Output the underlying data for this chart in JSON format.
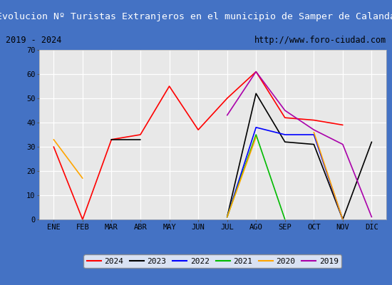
{
  "title": "Evolucion Nº Turistas Extranjeros en el municipio de Samper de Calanda",
  "subtitle_left": "2019 - 2024",
  "subtitle_right": "http://www.foro-ciudad.com",
  "months": [
    "ENE",
    "FEB",
    "MAR",
    "ABR",
    "MAY",
    "JUN",
    "JUL",
    "AGO",
    "SEP",
    "OCT",
    "NOV",
    "DIC"
  ],
  "series": {
    "2024": {
      "color": "#ff0000",
      "data": [
        30,
        0,
        33,
        35,
        55,
        37,
        50,
        61,
        42,
        41,
        39,
        null
      ]
    },
    "2023": {
      "color": "#000000",
      "data": [
        null,
        null,
        33,
        33,
        null,
        null,
        1,
        52,
        32,
        31,
        0,
        32
      ]
    },
    "2022": {
      "color": "#0000ff",
      "data": [
        null,
        null,
        null,
        null,
        null,
        null,
        1,
        38,
        35,
        35,
        0,
        null
      ]
    },
    "2021": {
      "color": "#00bb00",
      "data": [
        null,
        null,
        null,
        null,
        null,
        null,
        1,
        35,
        0,
        null,
        null,
        null
      ]
    },
    "2020": {
      "color": "#ffa500",
      "data": [
        33,
        17,
        null,
        null,
        null,
        null,
        1,
        34,
        null,
        36,
        0,
        null
      ]
    },
    "2019": {
      "color": "#aa00aa",
      "data": [
        null,
        null,
        null,
        null,
        null,
        null,
        43,
        61,
        45,
        37,
        31,
        1
      ]
    }
  },
  "ylim": [
    0,
    70
  ],
  "yticks": [
    0,
    10,
    20,
    30,
    40,
    50,
    60,
    70
  ],
  "title_bg": "#4472c4",
  "title_color": "#ffffff",
  "subtitle_bg": "#d4d4d4",
  "plot_bg": "#e8e8e8",
  "grid_color": "#ffffff",
  "outer_bg": "#4472c4",
  "legend_bg": "#ffffff",
  "legend_edge": "#888888"
}
